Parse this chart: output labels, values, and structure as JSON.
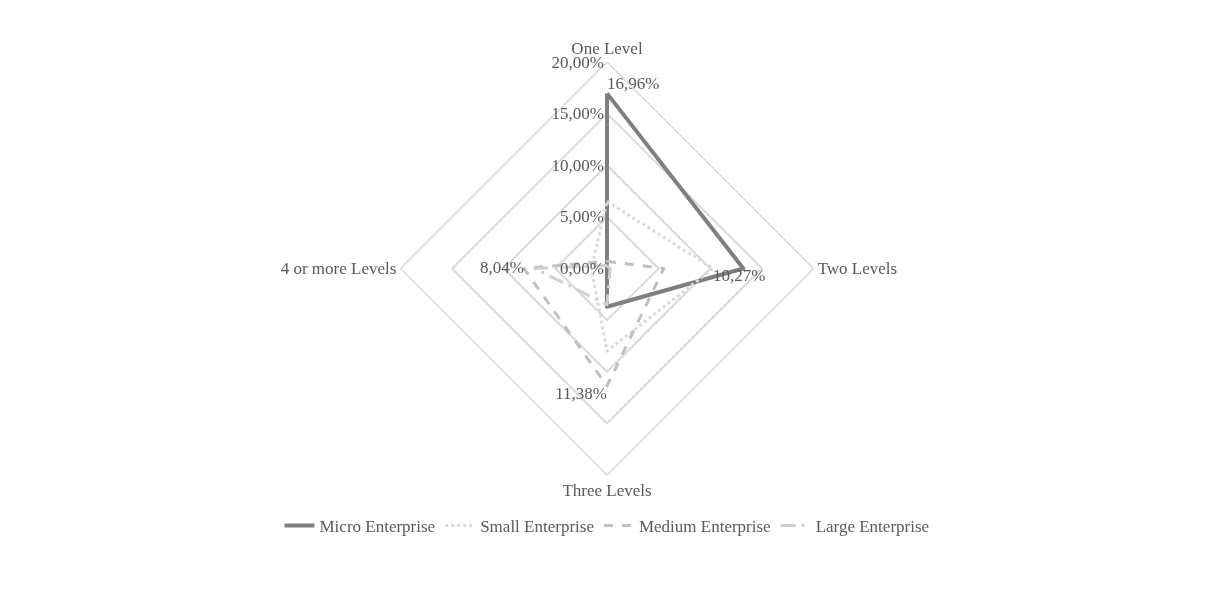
{
  "chart_data": {
    "type": "radar",
    "categories": [
      "One Level",
      "Two Levels",
      "Three Levels",
      "4 or more Levels"
    ],
    "series": [
      {
        "name": "Micro Enterprise",
        "color": "#7f7f7f",
        "line_style": "solid",
        "values": [
          16.96,
          13.2,
          3.7,
          0
        ],
        "value_labels": [
          "16,96%",
          null,
          null,
          null
        ]
      },
      {
        "name": "Small Enterprise",
        "color": "#d9d9d9",
        "line_style": "dotted",
        "values": [
          6.5,
          10.27,
          8,
          1.5
        ],
        "value_labels": [
          null,
          "10,27%",
          null,
          null
        ]
      },
      {
        "name": "Medium Enterprise",
        "color": "#bfbfbf",
        "line_style": "dashed",
        "values": [
          0.7,
          5.5,
          11.38,
          8.04
        ],
        "value_labels": [
          null,
          null,
          "11,38%",
          "8,04%"
        ]
      },
      {
        "name": "Large Enterprise",
        "color": "#d0d0d0",
        "line_style": "longdashdot",
        "values": [
          0.3,
          0.3,
          3.5,
          7
        ]
      }
    ],
    "ylim": [
      0,
      20
    ],
    "yticks": [
      {
        "value": 0,
        "label": "0,00%"
      },
      {
        "value": 5,
        "label": "5,00%"
      },
      {
        "value": 10,
        "label": "10,00%"
      },
      {
        "value": 15,
        "label": "15,00%"
      },
      {
        "value": 20,
        "label": "20,00%"
      }
    ],
    "grid": true,
    "legend": "bottom",
    "marker": "none"
  }
}
